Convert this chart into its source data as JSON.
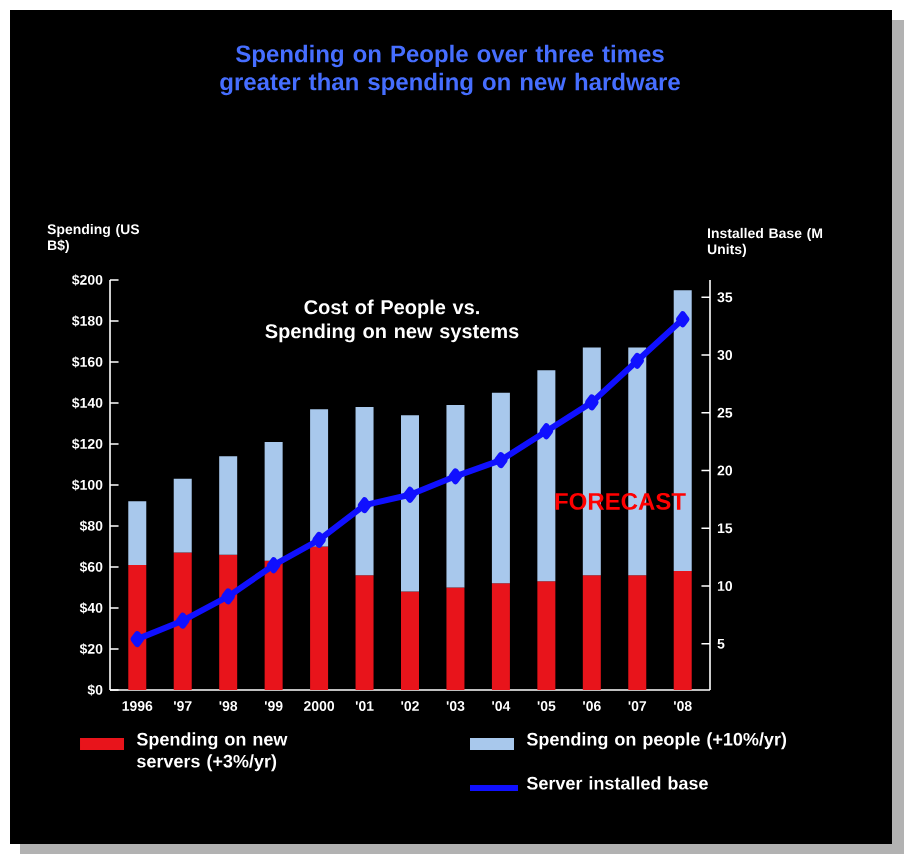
{
  "chart_data": {
    "type": "bar",
    "title": "Spending on People over three times greater than spending on new hardware",
    "subtitle": "Cost of People vs. Spending on new systems",
    "ylabel": "Spending (US B$)",
    "y2label": "Installed Base (M Units)",
    "annotations": [
      "FORECAST"
    ],
    "categories": [
      "1996",
      "'97",
      "'98",
      "'99",
      "2000",
      "'01",
      "'02",
      "'03",
      "'04",
      "'05",
      "'06",
      "'07",
      "'08"
    ],
    "stacked": true,
    "series": [
      {
        "name": "Spending on new servers (+3%/yr)",
        "color": "#e8141b",
        "values": [
          61,
          67,
          66,
          63,
          70,
          56,
          48,
          50,
          52,
          53,
          56,
          56,
          58
        ]
      },
      {
        "name": "Spending on people (+10%/yr)",
        "color": "#a8c8ec",
        "values": [
          31,
          36,
          48,
          58,
          67,
          82,
          86,
          89,
          93,
          103,
          111,
          111,
          137
        ]
      },
      {
        "name": "Server installed base",
        "type": "line",
        "axis": "y2",
        "color": "#1010ff",
        "marker": "diamond",
        "values": [
          5.4,
          7.0,
          9.1,
          11.8,
          14.0,
          17.0,
          17.9,
          19.5,
          20.9,
          23.4,
          25.9,
          29.5,
          33.1
        ]
      }
    ],
    "ylim": [
      0,
      200
    ],
    "yticks": [
      {
        "value": 0,
        "label": "$0"
      },
      {
        "value": 20,
        "label": "$20"
      },
      {
        "value": 40,
        "label": "$40"
      },
      {
        "value": 60,
        "label": "$60"
      },
      {
        "value": 80,
        "label": "$80"
      },
      {
        "value": 100,
        "label": "$100"
      },
      {
        "value": 120,
        "label": "$120"
      },
      {
        "value": 140,
        "label": "$140"
      },
      {
        "value": 160,
        "label": "$160"
      },
      {
        "value": 180,
        "label": "$180"
      },
      {
        "value": 200,
        "label": "$200"
      }
    ],
    "y2lim": [
      1,
      36.5
    ],
    "y2ticks": [
      5,
      10,
      15,
      20,
      25,
      30,
      35
    ],
    "legend": "bottom"
  }
}
